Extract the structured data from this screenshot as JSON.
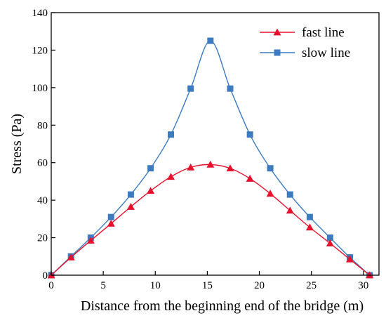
{
  "chart_data": {
    "type": "line",
    "title": "",
    "xlabel": "Distance from the beginning end of the bridge (m)",
    "ylabel": "Stress (Pa)",
    "xlim": [
      0,
      31.5
    ],
    "ylim": [
      0,
      140
    ],
    "xticks": [
      0,
      5,
      10,
      15,
      20,
      25,
      30
    ],
    "yticks": [
      0,
      20,
      40,
      60,
      80,
      100,
      120,
      140
    ],
    "grid": false,
    "legend_position": "top-right",
    "series": [
      {
        "name": "fast line",
        "color": "#e8112d",
        "marker": "triangle",
        "x": [
          0,
          1.9,
          3.8,
          5.75,
          7.65,
          9.55,
          11.5,
          13.4,
          15.3,
          17.2,
          19.1,
          21.05,
          22.95,
          24.85,
          26.8,
          28.7,
          30.6
        ],
        "y": [
          0,
          9.5,
          18.5,
          27.5,
          36.5,
          45,
          52.5,
          57.5,
          59,
          57,
          51.5,
          43.5,
          34.5,
          25.5,
          17,
          8.5,
          0
        ]
      },
      {
        "name": "slow line",
        "color": "#3c7bbf",
        "marker": "square",
        "x": [
          0,
          1.9,
          3.8,
          5.75,
          7.65,
          9.55,
          11.5,
          13.4,
          15.3,
          17.2,
          19.1,
          21.05,
          22.95,
          24.85,
          26.8,
          28.7,
          30.6
        ],
        "y": [
          0,
          10,
          20,
          31,
          43,
          57,
          75,
          99.5,
          125,
          99.5,
          75,
          57,
          43,
          31,
          20,
          9.5,
          0
        ]
      }
    ]
  }
}
